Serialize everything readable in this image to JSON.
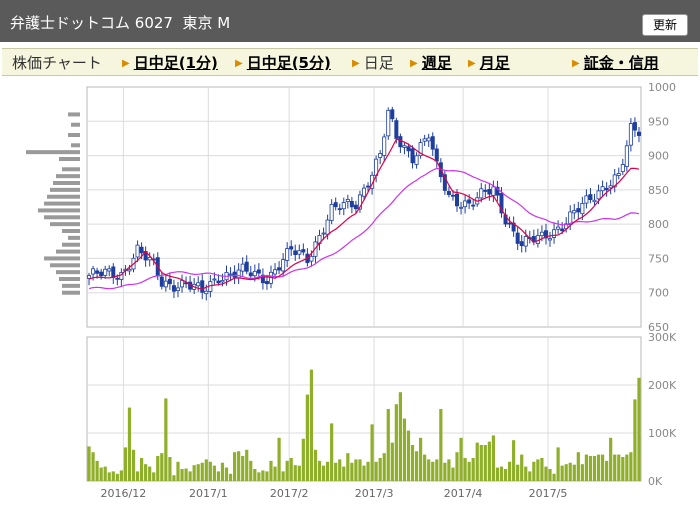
{
  "header": {
    "title_name": "弁護士ドットコム",
    "code": "6027",
    "market": "東京 M",
    "update_label": "更新"
  },
  "tabs": [
    {
      "label": "株価チャート",
      "link": false
    },
    {
      "label": "日中足(1分)",
      "link": true
    },
    {
      "label": "日中足(5分)",
      "link": true
    },
    {
      "label": "日足",
      "link": false
    },
    {
      "label": "週足",
      "link": true
    },
    {
      "label": "月足",
      "link": true
    },
    {
      "label": "証金・信用",
      "link": true
    }
  ],
  "colors": {
    "candle": "#1f3f9f",
    "ma_short": "#e0004a",
    "ma_long": "#cc33ee",
    "volume": "#8faf2a",
    "volume_profile": "#9a9a9a",
    "grid": "#dcdcdc"
  },
  "chart_data": {
    "type": "candlestick",
    "price_ylim": [
      650,
      1000
    ],
    "price_ticks": [
      1000,
      950,
      900,
      850,
      800,
      750,
      700,
      650
    ],
    "volume_ylim": [
      0,
      300000
    ],
    "volume_ticks": [
      {
        "value": 300000,
        "label": "300K"
      },
      {
        "value": 200000,
        "label": "200K"
      },
      {
        "value": 100000,
        "label": "100K"
      },
      {
        "value": 0,
        "label": "0K"
      }
    ],
    "month_labels": [
      {
        "label": "2016/12",
        "index": 9
      },
      {
        "label": "2017/1",
        "index": 30
      },
      {
        "label": "2017/2",
        "index": 50
      },
      {
        "label": "2017/3",
        "index": 71
      },
      {
        "label": "2017/4",
        "index": 93
      },
      {
        "label": "2017/5",
        "index": 114
      }
    ],
    "volume_profile": [
      {
        "price": 960,
        "weight": 0.2
      },
      {
        "price": 945,
        "weight": 0.15
      },
      {
        "price": 930,
        "weight": 0.2
      },
      {
        "price": 915,
        "weight": 0.15
      },
      {
        "price": 905,
        "weight": 0.9
      },
      {
        "price": 895,
        "weight": 0.35
      },
      {
        "price": 880,
        "weight": 0.3
      },
      {
        "price": 870,
        "weight": 0.4
      },
      {
        "price": 860,
        "weight": 0.45
      },
      {
        "price": 850,
        "weight": 0.5
      },
      {
        "price": 840,
        "weight": 0.55
      },
      {
        "price": 830,
        "weight": 0.6
      },
      {
        "price": 820,
        "weight": 0.7
      },
      {
        "price": 810,
        "weight": 0.6
      },
      {
        "price": 800,
        "weight": 0.5
      },
      {
        "price": 790,
        "weight": 0.3
      },
      {
        "price": 780,
        "weight": 0.2
      },
      {
        "price": 770,
        "weight": 0.3
      },
      {
        "price": 760,
        "weight": 0.4
      },
      {
        "price": 750,
        "weight": 0.6
      },
      {
        "price": 740,
        "weight": 0.5
      },
      {
        "price": 730,
        "weight": 0.4
      },
      {
        "price": 720,
        "weight": 0.35
      },
      {
        "price": 710,
        "weight": 0.3
      },
      {
        "price": 700,
        "weight": 0.3
      }
    ],
    "price_waypoints": [
      {
        "index": 0,
        "price": 725
      },
      {
        "index": 8,
        "price": 728
      },
      {
        "index": 12,
        "price": 762
      },
      {
        "index": 16,
        "price": 738
      },
      {
        "index": 18,
        "price": 715
      },
      {
        "index": 24,
        "price": 712
      },
      {
        "index": 28,
        "price": 700
      },
      {
        "index": 32,
        "price": 725
      },
      {
        "index": 38,
        "price": 730
      },
      {
        "index": 44,
        "price": 722
      },
      {
        "index": 50,
        "price": 760
      },
      {
        "index": 54,
        "price": 750
      },
      {
        "index": 60,
        "price": 820
      },
      {
        "index": 66,
        "price": 830
      },
      {
        "index": 72,
        "price": 900
      },
      {
        "index": 74,
        "price": 960
      },
      {
        "index": 76,
        "price": 925
      },
      {
        "index": 80,
        "price": 900
      },
      {
        "index": 84,
        "price": 930
      },
      {
        "index": 86,
        "price": 880
      },
      {
        "index": 89,
        "price": 840
      },
      {
        "index": 94,
        "price": 830
      },
      {
        "index": 97,
        "price": 840
      },
      {
        "index": 100,
        "price": 850
      },
      {
        "index": 103,
        "price": 810
      },
      {
        "index": 107,
        "price": 770
      },
      {
        "index": 112,
        "price": 780
      },
      {
        "index": 117,
        "price": 800
      },
      {
        "index": 122,
        "price": 825
      },
      {
        "index": 128,
        "price": 860
      },
      {
        "index": 131,
        "price": 870
      },
      {
        "index": 133,
        "price": 910
      },
      {
        "index": 134,
        "price": 935
      }
    ],
    "ma_short_waypoints": [
      {
        "index": 0,
        "price": 720
      },
      {
        "index": 8,
        "price": 725
      },
      {
        "index": 14,
        "price": 760
      },
      {
        "index": 18,
        "price": 730
      },
      {
        "index": 28,
        "price": 705
      },
      {
        "index": 36,
        "price": 720
      },
      {
        "index": 46,
        "price": 722
      },
      {
        "index": 54,
        "price": 752
      },
      {
        "index": 60,
        "price": 790
      },
      {
        "index": 66,
        "price": 815
      },
      {
        "index": 72,
        "price": 880
      },
      {
        "index": 76,
        "price": 925
      },
      {
        "index": 82,
        "price": 905
      },
      {
        "index": 86,
        "price": 890
      },
      {
        "index": 90,
        "price": 848
      },
      {
        "index": 96,
        "price": 835
      },
      {
        "index": 100,
        "price": 840
      },
      {
        "index": 104,
        "price": 805
      },
      {
        "index": 110,
        "price": 775
      },
      {
        "index": 116,
        "price": 785
      },
      {
        "index": 122,
        "price": 810
      },
      {
        "index": 128,
        "price": 845
      },
      {
        "index": 134,
        "price": 880
      }
    ],
    "ma_long_waypoints": [
      {
        "index": 0,
        "price": 706
      },
      {
        "index": 8,
        "price": 708
      },
      {
        "index": 14,
        "price": 718
      },
      {
        "index": 20,
        "price": 730
      },
      {
        "index": 30,
        "price": 727
      },
      {
        "index": 40,
        "price": 722
      },
      {
        "index": 48,
        "price": 725
      },
      {
        "index": 56,
        "price": 742
      },
      {
        "index": 64,
        "price": 770
      },
      {
        "index": 70,
        "price": 800
      },
      {
        "index": 76,
        "price": 840
      },
      {
        "index": 82,
        "price": 870
      },
      {
        "index": 86,
        "price": 880
      },
      {
        "index": 90,
        "price": 879
      },
      {
        "index": 96,
        "price": 868
      },
      {
        "index": 102,
        "price": 848
      },
      {
        "index": 108,
        "price": 820
      },
      {
        "index": 114,
        "price": 802
      },
      {
        "index": 118,
        "price": 800
      },
      {
        "index": 124,
        "price": 805
      },
      {
        "index": 130,
        "price": 808
      },
      {
        "index": 134,
        "price": 815
      }
    ],
    "volumes": [
      72000,
      60000,
      42000,
      28000,
      30000,
      18000,
      20000,
      15000,
      22000,
      70000,
      153000,
      65000,
      20000,
      48000,
      35000,
      30000,
      18000,
      52000,
      58000,
      172000,
      50000,
      12000,
      40000,
      25000,
      26000,
      20000,
      33000,
      35000,
      38000,
      45000,
      40000,
      32000,
      20000,
      38000,
      28000,
      15000,
      60000,
      62000,
      52000,
      65000,
      42000,
      25000,
      18000,
      22000,
      20000,
      42000,
      30000,
      90000,
      20000,
      42000,
      48000,
      33000,
      32000,
      88000,
      180000,
      232000,
      65000,
      42000,
      32000,
      40000,
      120000,
      38000,
      45000,
      30000,
      58000,
      38000,
      45000,
      45000,
      32000,
      40000,
      118000,
      40000,
      48000,
      58000,
      150000,
      80000,
      160000,
      185000,
      130000,
      105000,
      75000,
      62000,
      90000,
      55000,
      45000,
      40000,
      45000,
      150000,
      38000,
      45000,
      28000,
      60000,
      90000,
      48000,
      40000,
      48000,
      80000,
      75000,
      75000,
      82000,
      95000,
      28000,
      30000,
      25000,
      40000,
      85000,
      34000,
      55000,
      30000,
      20000,
      40000,
      45000,
      48000,
      30000,
      25000,
      15000,
      70000,
      32000,
      35000,
      38000,
      34000,
      60000,
      35000,
      55000,
      52000,
      52000,
      55000,
      55000,
      42000,
      90000,
      55000,
      55000,
      50000,
      55000,
      60000,
      170000,
      215000
    ]
  }
}
